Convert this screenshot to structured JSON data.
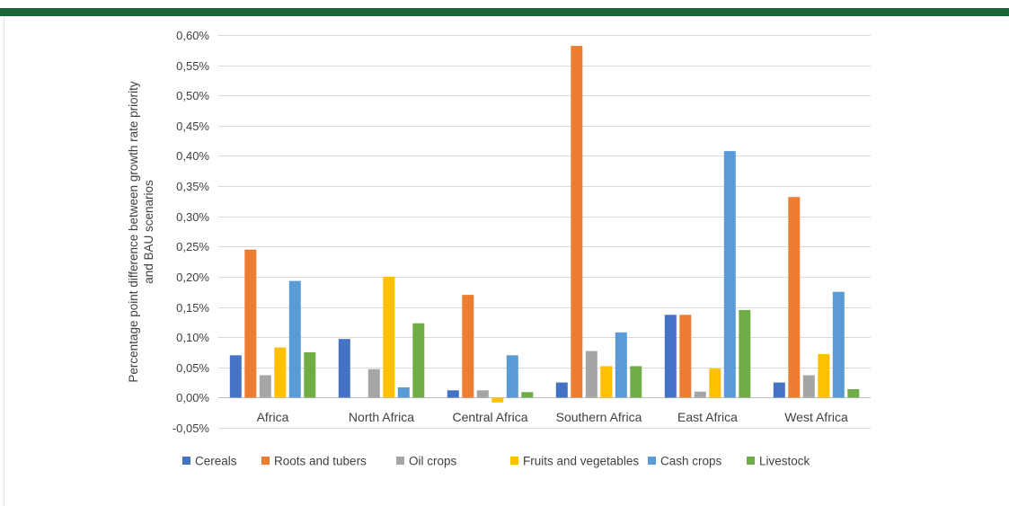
{
  "chart_data": {
    "type": "bar",
    "title": "",
    "ylabel_lines": [
      "Percentage point difference between growth rate  priority",
      "and BAU scenarios"
    ],
    "xlabel": "",
    "ylim": [
      -0.0005,
      0.006
    ],
    "yticks": [
      -0.0005,
      0,
      0.0005,
      0.001,
      0.0015,
      0.002,
      0.0025,
      0.003,
      0.0035,
      0.004,
      0.0045,
      0.005,
      0.0055,
      0.006
    ],
    "ytick_labels": [
      "-0,05%",
      "0,00%",
      "0,05%",
      "0,10%",
      "0,15%",
      "0,20%",
      "0,25%",
      "0,30%",
      "0,35%",
      "0,40%",
      "0,45%",
      "0,50%",
      "0,55%",
      "0,60%"
    ],
    "grid": true,
    "legend_position": "bottom",
    "categories": [
      "Africa",
      "North Africa",
      "Central Africa",
      "Southern Africa",
      "East Africa",
      "West Africa"
    ],
    "series": [
      {
        "name": "Cereals",
        "color": "#4472c4",
        "values": [
          0.0007,
          0.00097,
          0.00012,
          0.00025,
          0.00137,
          0.00025
        ]
      },
      {
        "name": "Roots and tubers",
        "color": "#ed7d31",
        "values": [
          0.00245,
          0.0,
          0.0017,
          0.00582,
          0.00137,
          0.00332
        ]
      },
      {
        "name": "Oil crops",
        "color": "#a5a5a5",
        "values": [
          0.00037,
          0.00047,
          0.00012,
          0.00077,
          0.0001,
          0.00037
        ]
      },
      {
        "name": "Fruits and vegetables",
        "color": "#ffc000",
        "values": [
          0.00083,
          0.002,
          -8e-05,
          0.00052,
          0.00048,
          0.00072
        ]
      },
      {
        "name": "Cash crops",
        "color": "#5b9bd5",
        "values": [
          0.00193,
          0.00017,
          0.0007,
          0.00108,
          0.00408,
          0.00175
        ]
      },
      {
        "name": "Livestock",
        "color": "#70ad47",
        "values": [
          0.00075,
          0.00123,
          9e-05,
          0.00052,
          0.00145,
          0.00014
        ]
      }
    ]
  }
}
